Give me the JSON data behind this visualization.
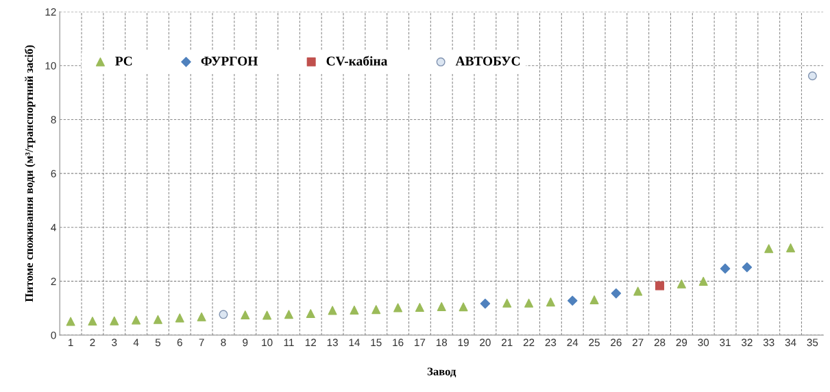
{
  "chart_data": {
    "type": "scatter",
    "xlabel": "Завод",
    "ylabel": "Питоме споживання води (м³/транспортний засіб)",
    "categories": [
      "1",
      "2",
      "3",
      "4",
      "5",
      "6",
      "7",
      "8",
      "9",
      "10",
      "11",
      "12",
      "13",
      "14",
      "15",
      "16",
      "17",
      "18",
      "19",
      "20",
      "21",
      "22",
      "23",
      "24",
      "25",
      "26",
      "27",
      "28",
      "29",
      "30",
      "31",
      "32",
      "33",
      "34",
      "35"
    ],
    "series": [
      {
        "name": "PC",
        "color": "#9bbb59",
        "marker": "triangle",
        "values": [
          0.51,
          0.52,
          0.53,
          0.56,
          0.58,
          0.64,
          0.68,
          null,
          0.75,
          0.74,
          0.77,
          0.8,
          0.92,
          0.93,
          0.95,
          1.02,
          1.03,
          1.06,
          1.05,
          null,
          1.19,
          1.19,
          1.23,
          null,
          1.31,
          null,
          1.63,
          null,
          1.9,
          2.0,
          null,
          null,
          3.21,
          3.24,
          null
        ]
      },
      {
        "name": "ФУРГОН",
        "color": "#4f81bd",
        "marker": "diamond",
        "values": [
          null,
          null,
          null,
          null,
          null,
          null,
          null,
          null,
          null,
          null,
          null,
          null,
          null,
          null,
          null,
          null,
          null,
          null,
          null,
          1.17,
          null,
          null,
          null,
          1.28,
          null,
          1.55,
          null,
          null,
          null,
          null,
          2.47,
          2.52,
          null,
          null,
          null
        ]
      },
      {
        "name": "CV-кабіна",
        "color": "#c0504d",
        "marker": "square",
        "values": [
          null,
          null,
          null,
          null,
          null,
          null,
          null,
          null,
          null,
          null,
          null,
          null,
          null,
          null,
          null,
          null,
          null,
          null,
          null,
          null,
          null,
          null,
          null,
          null,
          null,
          null,
          null,
          1.83,
          null,
          null,
          null,
          null,
          null,
          null,
          null
        ]
      },
      {
        "name": "АВТОБУС",
        "color": "#dce6f2",
        "marker": "circle",
        "values": [
          null,
          null,
          null,
          null,
          null,
          null,
          null,
          0.77,
          null,
          null,
          null,
          null,
          null,
          null,
          null,
          null,
          null,
          null,
          null,
          null,
          null,
          null,
          null,
          null,
          null,
          null,
          null,
          null,
          null,
          null,
          null,
          null,
          null,
          null,
          9.62
        ]
      }
    ],
    "ylim": [
      0,
      12
    ],
    "yticks": [
      0,
      2,
      4,
      6,
      8,
      10,
      12
    ],
    "grid": true,
    "legend": "top left"
  }
}
